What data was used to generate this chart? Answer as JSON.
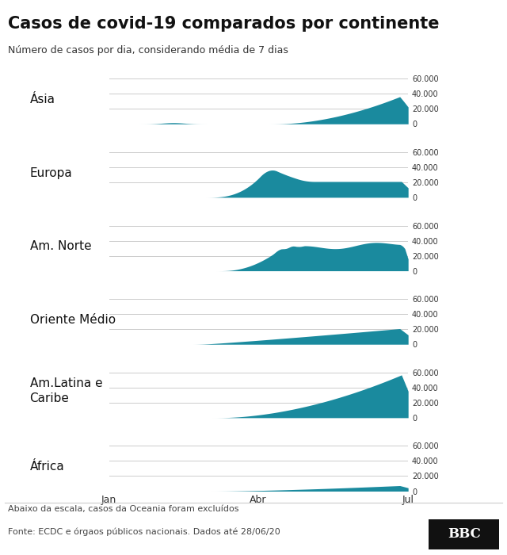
{
  "title": "Casos de covid-19 comparados por continente",
  "subtitle": "Número de casos por dia, considerando média de 7 dias",
  "footer_note": "Abaixo da escala, casos da Oceania foram excluídos",
  "footer_source": "Fonte: ECDC e órgaos públicos nacionais. Dados até 28/06/20",
  "fill_color": "#1a8a9e",
  "background_color": "#ffffff",
  "continents": [
    "Ásia",
    "Europa",
    "Am. Norte",
    "Oriente Médio",
    "Am.Latina e\nCaribe",
    "África"
  ],
  "yticks": [
    0,
    20000,
    40000,
    60000
  ],
  "ytick_labels": [
    "0",
    "20.000",
    "40.000",
    "60.000"
  ],
  "ylim": [
    0,
    65000
  ],
  "xtick_labels": [
    "Jan",
    "Abr",
    "Jul"
  ],
  "n_days": 180,
  "title_fontsize": 15,
  "subtitle_fontsize": 9,
  "label_fontsize": 11,
  "ytick_fontsize": 7,
  "xtick_fontsize": 9,
  "footer_fontsize": 8
}
